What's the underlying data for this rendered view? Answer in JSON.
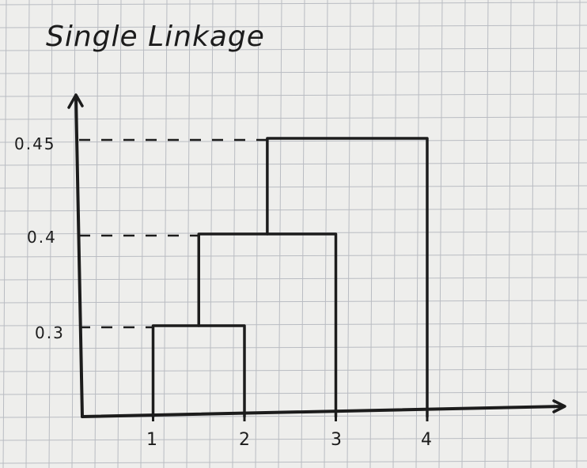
{
  "title": "Single Linkage",
  "x_ticks": [
    "1",
    "2",
    "3",
    "4"
  ],
  "y_ticks": [
    "0.3",
    "0.4",
    "0.45"
  ],
  "dendrogram": {
    "leaves": [
      1,
      2,
      3,
      4
    ],
    "merges": [
      {
        "left": 1,
        "right": 2,
        "height": 0.3
      },
      {
        "left": 1.5,
        "right": 3,
        "height": 0.4
      },
      {
        "left": 2.25,
        "right": 4,
        "height": 0.45
      }
    ]
  },
  "colors": {
    "paper": "#eeeeec",
    "grid": "#b9bcc2",
    "ink": "#1c1c1c"
  }
}
